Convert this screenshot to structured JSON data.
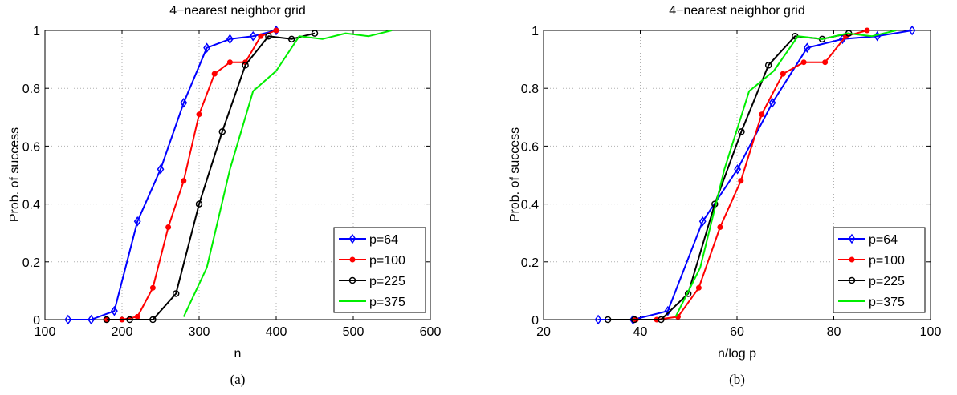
{
  "chart_data": [
    {
      "type": "line",
      "title": "4−nearest neighbor grid",
      "xlabel": "n",
      "ylabel": "Prob. of success",
      "caption": "(a)",
      "xlim": [
        100,
        600
      ],
      "ylim": [
        0,
        1
      ],
      "xticks": [
        "100",
        "200",
        "300",
        "400",
        "500",
        "600"
      ],
      "yticks": [
        "0",
        "0.2",
        "0.4",
        "0.6",
        "0.8",
        "1"
      ],
      "grid": true,
      "legend_position": "bottom-right",
      "series": [
        {
          "name": "p=64",
          "color": "#0000ff",
          "marker": "diamond",
          "x": [
            130,
            160,
            190,
            220,
            250,
            280,
            310,
            340,
            370,
            400
          ],
          "y": [
            0,
            0,
            0.03,
            0.34,
            0.52,
            0.75,
            0.94,
            0.97,
            0.98,
            1.0
          ]
        },
        {
          "name": "p=100",
          "color": "#ff0000",
          "marker": "dot",
          "x": [
            180,
            200,
            220,
            240,
            260,
            280,
            300,
            320,
            340,
            360,
            380,
            400
          ],
          "y": [
            0,
            0,
            0.01,
            0.11,
            0.32,
            0.48,
            0.71,
            0.85,
            0.89,
            0.89,
            0.98,
            1.0
          ]
        },
        {
          "name": "p=225",
          "color": "#000000",
          "marker": "circle",
          "x": [
            180,
            210,
            240,
            270,
            300,
            330,
            360,
            390,
            420,
            450
          ],
          "y": [
            0,
            0,
            0,
            0.09,
            0.4,
            0.65,
            0.88,
            0.98,
            0.97,
            0.99
          ]
        },
        {
          "name": "p=375",
          "color": "#00ee00",
          "marker": "none",
          "x": [
            280,
            310,
            340,
            370,
            400,
            430,
            460,
            490,
            520,
            550
          ],
          "y": [
            0.01,
            0.18,
            0.52,
            0.79,
            0.86,
            0.98,
            0.97,
            0.99,
            0.98,
            1.0
          ]
        }
      ]
    },
    {
      "type": "line",
      "title": "4−nearest neighbor grid",
      "xlabel": "n/log p",
      "ylabel": "Prob. of success",
      "caption": "(b)",
      "xlim": [
        20,
        100
      ],
      "ylim": [
        0,
        1
      ],
      "xticks": [
        "20",
        "40",
        "60",
        "80",
        "100"
      ],
      "yticks": [
        "0",
        "0.2",
        "0.4",
        "0.6",
        "0.8",
        "1"
      ],
      "grid": true,
      "legend_position": "bottom-right",
      "series": [
        {
          "name": "p=64",
          "color": "#0000ff",
          "marker": "diamond",
          "x": [
            31.3,
            38.5,
            45.7,
            52.9,
            60.1,
            67.3,
            74.5,
            81.8,
            89.0,
            96.2
          ],
          "y": [
            0,
            0,
            0.03,
            0.34,
            0.52,
            0.75,
            0.94,
            0.97,
            0.98,
            1.0
          ]
        },
        {
          "name": "p=100",
          "color": "#ff0000",
          "marker": "dot",
          "x": [
            39.1,
            43.4,
            47.8,
            52.1,
            56.5,
            60.8,
            65.1,
            69.5,
            73.8,
            78.2,
            82.5,
            86.9
          ],
          "y": [
            0,
            0,
            0.01,
            0.11,
            0.32,
            0.48,
            0.71,
            0.85,
            0.89,
            0.89,
            0.98,
            1.0
          ]
        },
        {
          "name": "p=225",
          "color": "#000000",
          "marker": "circle",
          "x": [
            33.3,
            38.8,
            44.3,
            49.9,
            55.4,
            60.9,
            66.5,
            72.0,
            77.6,
            83.1
          ],
          "y": [
            0,
            0,
            0,
            0.09,
            0.4,
            0.65,
            0.88,
            0.98,
            0.97,
            0.99
          ]
        },
        {
          "name": "p=375",
          "color": "#00ee00",
          "marker": "none",
          "x": [
            47.3,
            52.4,
            57.4,
            62.5,
            67.6,
            72.6,
            77.7,
            82.8,
            87.9,
            92.9
          ],
          "y": [
            0.01,
            0.18,
            0.52,
            0.79,
            0.86,
            0.98,
            0.97,
            0.99,
            0.98,
            1.0
          ]
        }
      ]
    }
  ]
}
